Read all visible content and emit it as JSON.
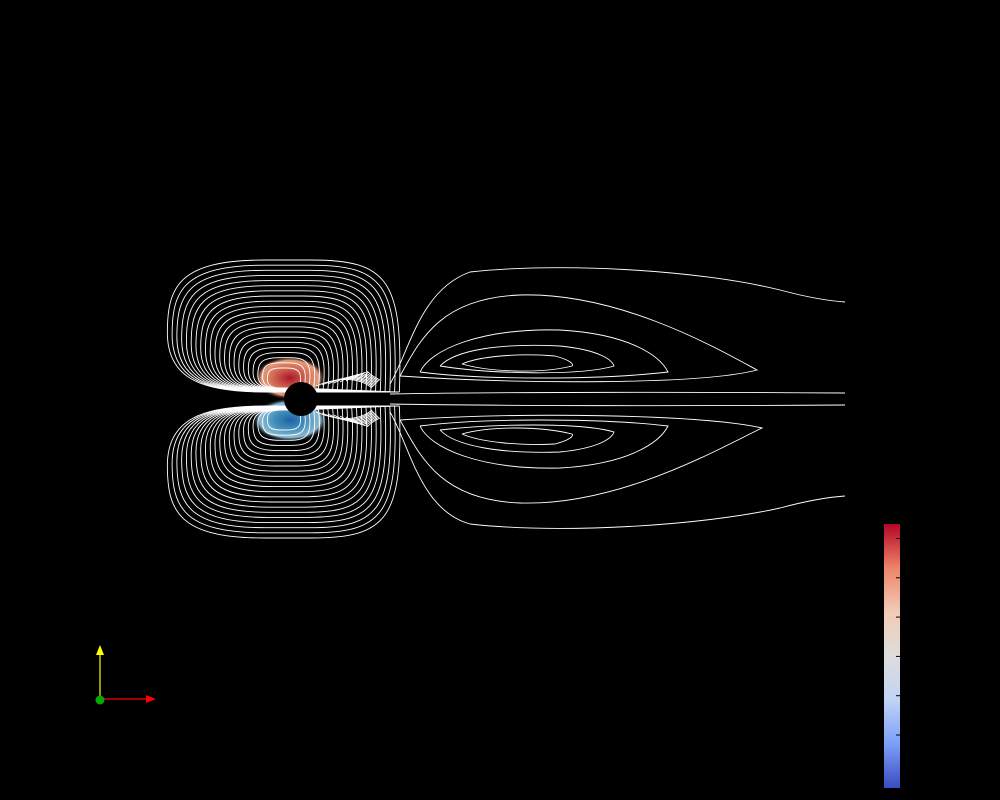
{
  "render_view": {
    "background_color": "#000000",
    "contour_line_color": "#ffffff",
    "obstacle_color": "#000000",
    "upper_lobe_colors": [
      "#f4a582",
      "#d6604d",
      "#b2182b"
    ],
    "lower_lobe_colors": [
      "#92c5de",
      "#4393c3",
      "#2166ac"
    ]
  },
  "color_legend": {
    "colors": [
      "#3b4cc0",
      "#7b9ff9",
      "#c0d4f5",
      "#dddddd",
      "#f2cbb7",
      "#ee8468",
      "#b40426"
    ],
    "tick_count": 6
  },
  "orientation_axes": {
    "x_axis_color": "#ff0000",
    "y_axis_color": "#ffff00",
    "z_axis_color": "#00aa00"
  }
}
